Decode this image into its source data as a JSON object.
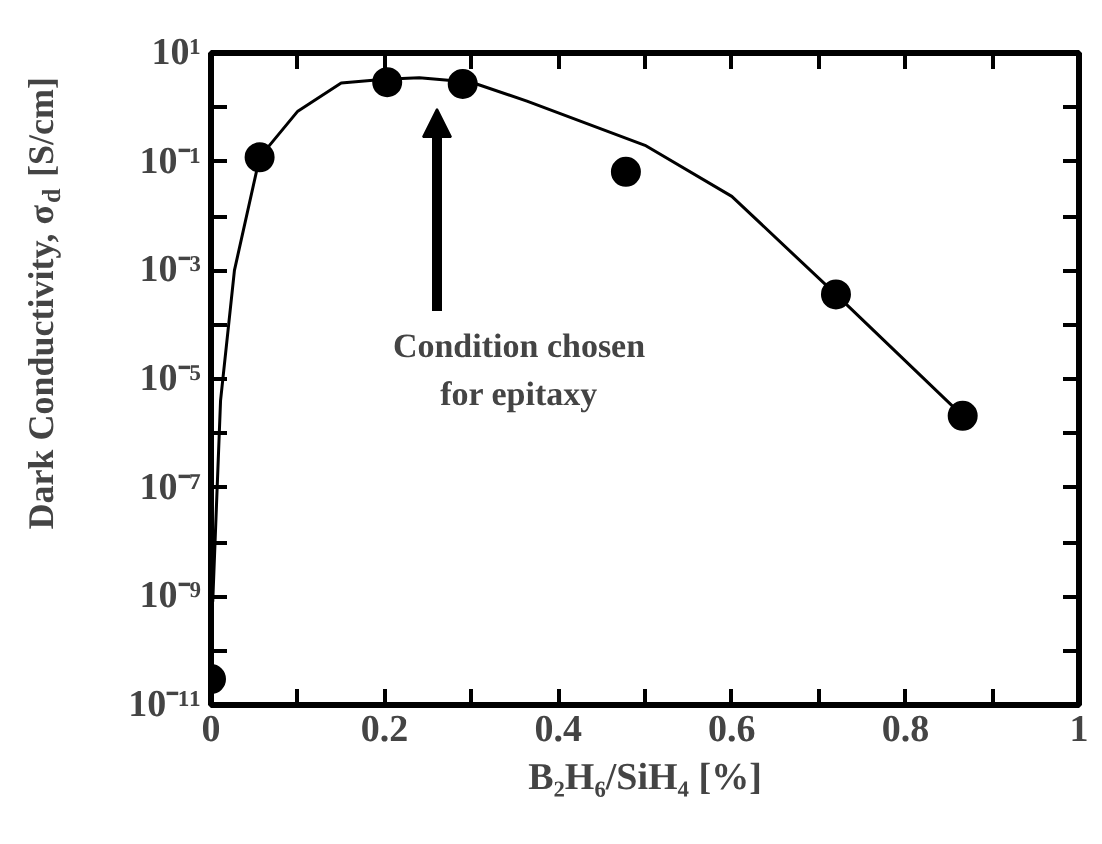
{
  "chart_data": {
    "type": "scatter",
    "xlabel": "B₂H₆/SiH₄ [%]",
    "ylabel": "Dark Conductivity, σ$_{d}$ [S/cm]",
    "log": "y",
    "grid": false,
    "xlim": [
      0,
      1
    ],
    "xticks": [
      0,
      {
        "value": 0.1,
        "label": null
      },
      {
        "value": 0.2,
        "label": "0.2"
      },
      {
        "value": 0.3,
        "label": null
      },
      {
        "value": 0.4,
        "label": "0.4"
      },
      {
        "value": 0.5,
        "label": null
      },
      {
        "value": 0.6,
        "label": "0.6"
      },
      {
        "value": 0.7,
        "label": null
      },
      {
        "value": 0.8,
        "label": "0.8"
      },
      {
        "value": 0.9,
        "label": null
      },
      1
    ],
    "ylim": [
      1e-11,
      10
    ],
    "yticks": [
      {
        "value": 1e-11,
        "label": "10⁻¹¹"
      },
      {
        "value": 1e-10,
        "label": null
      },
      {
        "value": 1e-09,
        "label": "10⁻⁹"
      },
      {
        "value": 1e-08,
        "label": null
      },
      {
        "value": 1e-07,
        "label": "10⁻⁷"
      },
      {
        "value": 1e-06,
        "label": null
      },
      {
        "value": 1e-05,
        "label": "10⁻⁵"
      },
      {
        "value": 0.0001,
        "label": null
      },
      {
        "value": 0.001,
        "label": "10⁻³"
      },
      {
        "value": 0.01,
        "label": null
      },
      {
        "value": 0.1,
        "label": "10⁻¹"
      },
      {
        "value": 1,
        "label": null
      },
      {
        "value": 10,
        "label": "10¹"
      }
    ],
    "series": [
      {
        "marker": "circle",
        "color": "#000000",
        "x": [
          0,
          0.056,
          0.203,
          0.29,
          0.478,
          0.72,
          0.866
        ],
        "values": [
          3e-11,
          0.12,
          2.9,
          2.7,
          0.065,
          0.00036,
          2.1e-06
        ]
      },
      {
        "type": "line",
        "color": "#000000",
        "x": [
          0.002,
          0.011,
          0.027,
          0.056,
          0.1,
          0.15,
          0.2,
          0.24,
          0.3,
          0.364,
          0.5,
          0.6,
          0.72,
          0.866
        ],
        "values": [
          8e-10,
          4e-06,
          0.001,
          0.12,
          0.85,
          2.8,
          3.3,
          3.5,
          2.9,
          1.3,
          0.2,
          0.023,
          0.00036,
          2.1e-06
        ]
      }
    ],
    "annotations": [
      "Condition chosen\nfor epitaxy"
    ]
  }
}
